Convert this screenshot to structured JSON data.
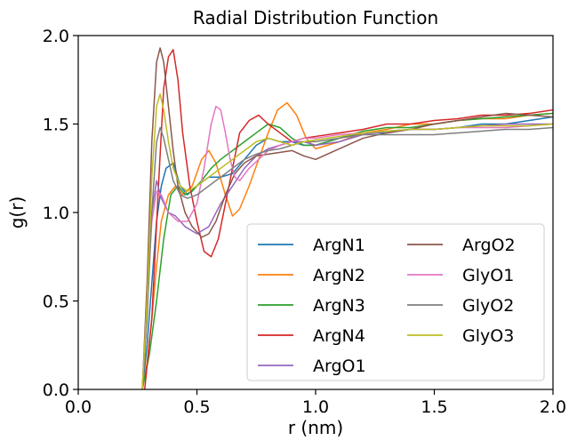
{
  "chart_data": {
    "type": "line",
    "title": "Radial Distribution Function",
    "xlabel": "r (nm)",
    "ylabel": "g(r)",
    "xlim": [
      0.0,
      2.0
    ],
    "ylim": [
      0.0,
      2.0
    ],
    "xticks": [
      "0.0",
      "0.5",
      "1.0",
      "1.5",
      "2.0"
    ],
    "yticks": [
      "0.0",
      "0.5",
      "1.0",
      "1.5",
      "2.0"
    ],
    "grid": false,
    "legend_position": "lower-right",
    "legend_columns": 2,
    "series": [
      {
        "name": "ArgN1",
        "color": "#1f77b4",
        "x": [
          0.27,
          0.29,
          0.31,
          0.33,
          0.35,
          0.37,
          0.4,
          0.43,
          0.46,
          0.5,
          0.55,
          0.6,
          0.65,
          0.7,
          0.75,
          0.8,
          0.85,
          0.9,
          0.95,
          1.0,
          1.1,
          1.2,
          1.3,
          1.4,
          1.5,
          1.6,
          1.7,
          1.8,
          1.9,
          2.0
        ],
        "y": [
          0.0,
          0.25,
          0.6,
          0.95,
          1.15,
          1.25,
          1.28,
          1.15,
          1.1,
          1.15,
          1.2,
          1.2,
          1.22,
          1.3,
          1.38,
          1.42,
          1.4,
          1.4,
          1.38,
          1.38,
          1.42,
          1.45,
          1.45,
          1.47,
          1.47,
          1.48,
          1.5,
          1.5,
          1.52,
          1.54
        ]
      },
      {
        "name": "ArgN2",
        "color": "#ff7f0e",
        "x": [
          0.27,
          0.29,
          0.31,
          0.33,
          0.35,
          0.38,
          0.41,
          0.44,
          0.48,
          0.52,
          0.55,
          0.58,
          0.62,
          0.65,
          0.68,
          0.72,
          0.76,
          0.8,
          0.84,
          0.88,
          0.92,
          0.96,
          1.0,
          1.1,
          1.2,
          1.3,
          1.4,
          1.5,
          1.6,
          1.7,
          1.8,
          1.9,
          2.0
        ],
        "y": [
          0.0,
          0.15,
          0.4,
          0.7,
          0.95,
          1.1,
          1.15,
          1.1,
          1.15,
          1.3,
          1.35,
          1.28,
          1.1,
          0.98,
          1.02,
          1.15,
          1.3,
          1.45,
          1.58,
          1.62,
          1.55,
          1.42,
          1.36,
          1.4,
          1.45,
          1.47,
          1.5,
          1.5,
          1.52,
          1.53,
          1.53,
          1.55,
          1.56
        ]
      },
      {
        "name": "ArgN3",
        "color": "#2ca02c",
        "x": [
          0.27,
          0.3,
          0.33,
          0.36,
          0.39,
          0.42,
          0.45,
          0.48,
          0.52,
          0.56,
          0.6,
          0.65,
          0.7,
          0.75,
          0.8,
          0.85,
          0.9,
          0.95,
          1.0,
          1.1,
          1.2,
          1.3,
          1.4,
          1.5,
          1.6,
          1.7,
          1.8,
          1.9,
          2.0
        ],
        "y": [
          0.0,
          0.2,
          0.5,
          0.85,
          1.1,
          1.15,
          1.1,
          1.12,
          1.18,
          1.25,
          1.3,
          1.35,
          1.4,
          1.45,
          1.5,
          1.48,
          1.42,
          1.38,
          1.38,
          1.42,
          1.46,
          1.48,
          1.48,
          1.5,
          1.52,
          1.53,
          1.54,
          1.55,
          1.56
        ]
      },
      {
        "name": "ArgN4",
        "color": "#d62728",
        "x": [
          0.28,
          0.31,
          0.34,
          0.36,
          0.38,
          0.4,
          0.42,
          0.44,
          0.47,
          0.5,
          0.53,
          0.56,
          0.59,
          0.62,
          0.65,
          0.68,
          0.72,
          0.76,
          0.8,
          0.85,
          0.9,
          0.95,
          1.0,
          1.1,
          1.2,
          1.3,
          1.4,
          1.5,
          1.6,
          1.7,
          1.8,
          1.9,
          2.0
        ],
        "y": [
          0.0,
          0.4,
          1.2,
          1.7,
          1.88,
          1.92,
          1.75,
          1.45,
          1.15,
          0.95,
          0.78,
          0.75,
          0.85,
          1.05,
          1.25,
          1.45,
          1.52,
          1.55,
          1.5,
          1.45,
          1.4,
          1.42,
          1.43,
          1.45,
          1.47,
          1.5,
          1.5,
          1.52,
          1.53,
          1.55,
          1.55,
          1.56,
          1.58
        ]
      },
      {
        "name": "ArgO1",
        "color": "#9467bd",
        "x": [
          0.27,
          0.29,
          0.31,
          0.33,
          0.35,
          0.38,
          0.41,
          0.45,
          0.5,
          0.55,
          0.6,
          0.65,
          0.7,
          0.75,
          0.8,
          0.85,
          0.9,
          0.95,
          1.0,
          1.1,
          1.2,
          1.3,
          1.4,
          1.5,
          1.6,
          1.7,
          1.8,
          1.9,
          2.0
        ],
        "y": [
          0.0,
          0.5,
          1.0,
          1.18,
          1.08,
          1.0,
          0.98,
          0.92,
          0.88,
          0.92,
          1.05,
          1.15,
          1.25,
          1.32,
          1.36,
          1.38,
          1.4,
          1.4,
          1.38,
          1.4,
          1.44,
          1.46,
          1.47,
          1.47,
          1.48,
          1.49,
          1.5,
          1.5,
          1.5
        ]
      },
      {
        "name": "ArgO2",
        "color": "#8c564b",
        "x": [
          0.27,
          0.29,
          0.31,
          0.33,
          0.345,
          0.36,
          0.38,
          0.4,
          0.42,
          0.45,
          0.48,
          0.52,
          0.55,
          0.58,
          0.62,
          0.66,
          0.7,
          0.75,
          0.8,
          0.85,
          0.9,
          0.95,
          1.0,
          1.1,
          1.2,
          1.3,
          1.4,
          1.5,
          1.6,
          1.7,
          1.8,
          1.9,
          2.0
        ],
        "y": [
          0.0,
          0.6,
          1.4,
          1.85,
          1.93,
          1.85,
          1.6,
          1.35,
          1.15,
          1.0,
          0.92,
          0.86,
          0.88,
          0.95,
          1.1,
          1.22,
          1.28,
          1.32,
          1.33,
          1.34,
          1.35,
          1.32,
          1.3,
          1.36,
          1.42,
          1.45,
          1.47,
          1.5,
          1.52,
          1.54,
          1.56,
          1.55,
          1.54
        ]
      },
      {
        "name": "GlyO1",
        "color": "#e377c2",
        "x": [
          0.27,
          0.29,
          0.31,
          0.33,
          0.35,
          0.38,
          0.42,
          0.46,
          0.5,
          0.53,
          0.56,
          0.58,
          0.6,
          0.62,
          0.64,
          0.66,
          0.68,
          0.72,
          0.76,
          0.8,
          0.85,
          0.9,
          0.95,
          1.0,
          1.1,
          1.2,
          1.3,
          1.4,
          1.5,
          1.6,
          1.7,
          1.8,
          1.9,
          2.0
        ],
        "y": [
          0.0,
          0.5,
          0.95,
          1.12,
          1.1,
          1.0,
          0.95,
          0.95,
          1.05,
          1.25,
          1.5,
          1.6,
          1.58,
          1.45,
          1.3,
          1.2,
          1.18,
          1.25,
          1.3,
          1.35,
          1.38,
          1.4,
          1.42,
          1.42,
          1.44,
          1.45,
          1.46,
          1.47,
          1.47,
          1.48,
          1.48,
          1.48,
          1.49,
          1.5
        ]
      },
      {
        "name": "GlyO2",
        "color": "#7f7f7f",
        "x": [
          0.27,
          0.29,
          0.31,
          0.33,
          0.345,
          0.36,
          0.38,
          0.4,
          0.43,
          0.46,
          0.5,
          0.55,
          0.6,
          0.65,
          0.7,
          0.75,
          0.8,
          0.85,
          0.9,
          0.95,
          1.0,
          1.1,
          1.2,
          1.3,
          1.4,
          1.5,
          1.6,
          1.7,
          1.8,
          1.9,
          2.0
        ],
        "y": [
          0.0,
          0.4,
          1.0,
          1.4,
          1.48,
          1.42,
          1.3,
          1.18,
          1.1,
          1.08,
          1.1,
          1.15,
          1.2,
          1.25,
          1.3,
          1.33,
          1.35,
          1.36,
          1.38,
          1.4,
          1.4,
          1.42,
          1.44,
          1.44,
          1.44,
          1.44,
          1.45,
          1.46,
          1.47,
          1.47,
          1.48
        ]
      },
      {
        "name": "GlyO3",
        "color": "#bcbd22",
        "x": [
          0.27,
          0.29,
          0.31,
          0.33,
          0.345,
          0.36,
          0.38,
          0.4,
          0.43,
          0.46,
          0.5,
          0.55,
          0.6,
          0.65,
          0.7,
          0.75,
          0.8,
          0.85,
          0.9,
          0.95,
          1.0,
          1.1,
          1.2,
          1.3,
          1.4,
          1.5,
          1.6,
          1.7,
          1.8,
          1.9,
          2.0
        ],
        "y": [
          0.0,
          0.5,
          1.2,
          1.6,
          1.67,
          1.58,
          1.4,
          1.25,
          1.15,
          1.12,
          1.15,
          1.2,
          1.25,
          1.3,
          1.35,
          1.4,
          1.42,
          1.4,
          1.38,
          1.4,
          1.41,
          1.43,
          1.45,
          1.46,
          1.47,
          1.47,
          1.48,
          1.49,
          1.49,
          1.49,
          1.5
        ]
      }
    ]
  }
}
